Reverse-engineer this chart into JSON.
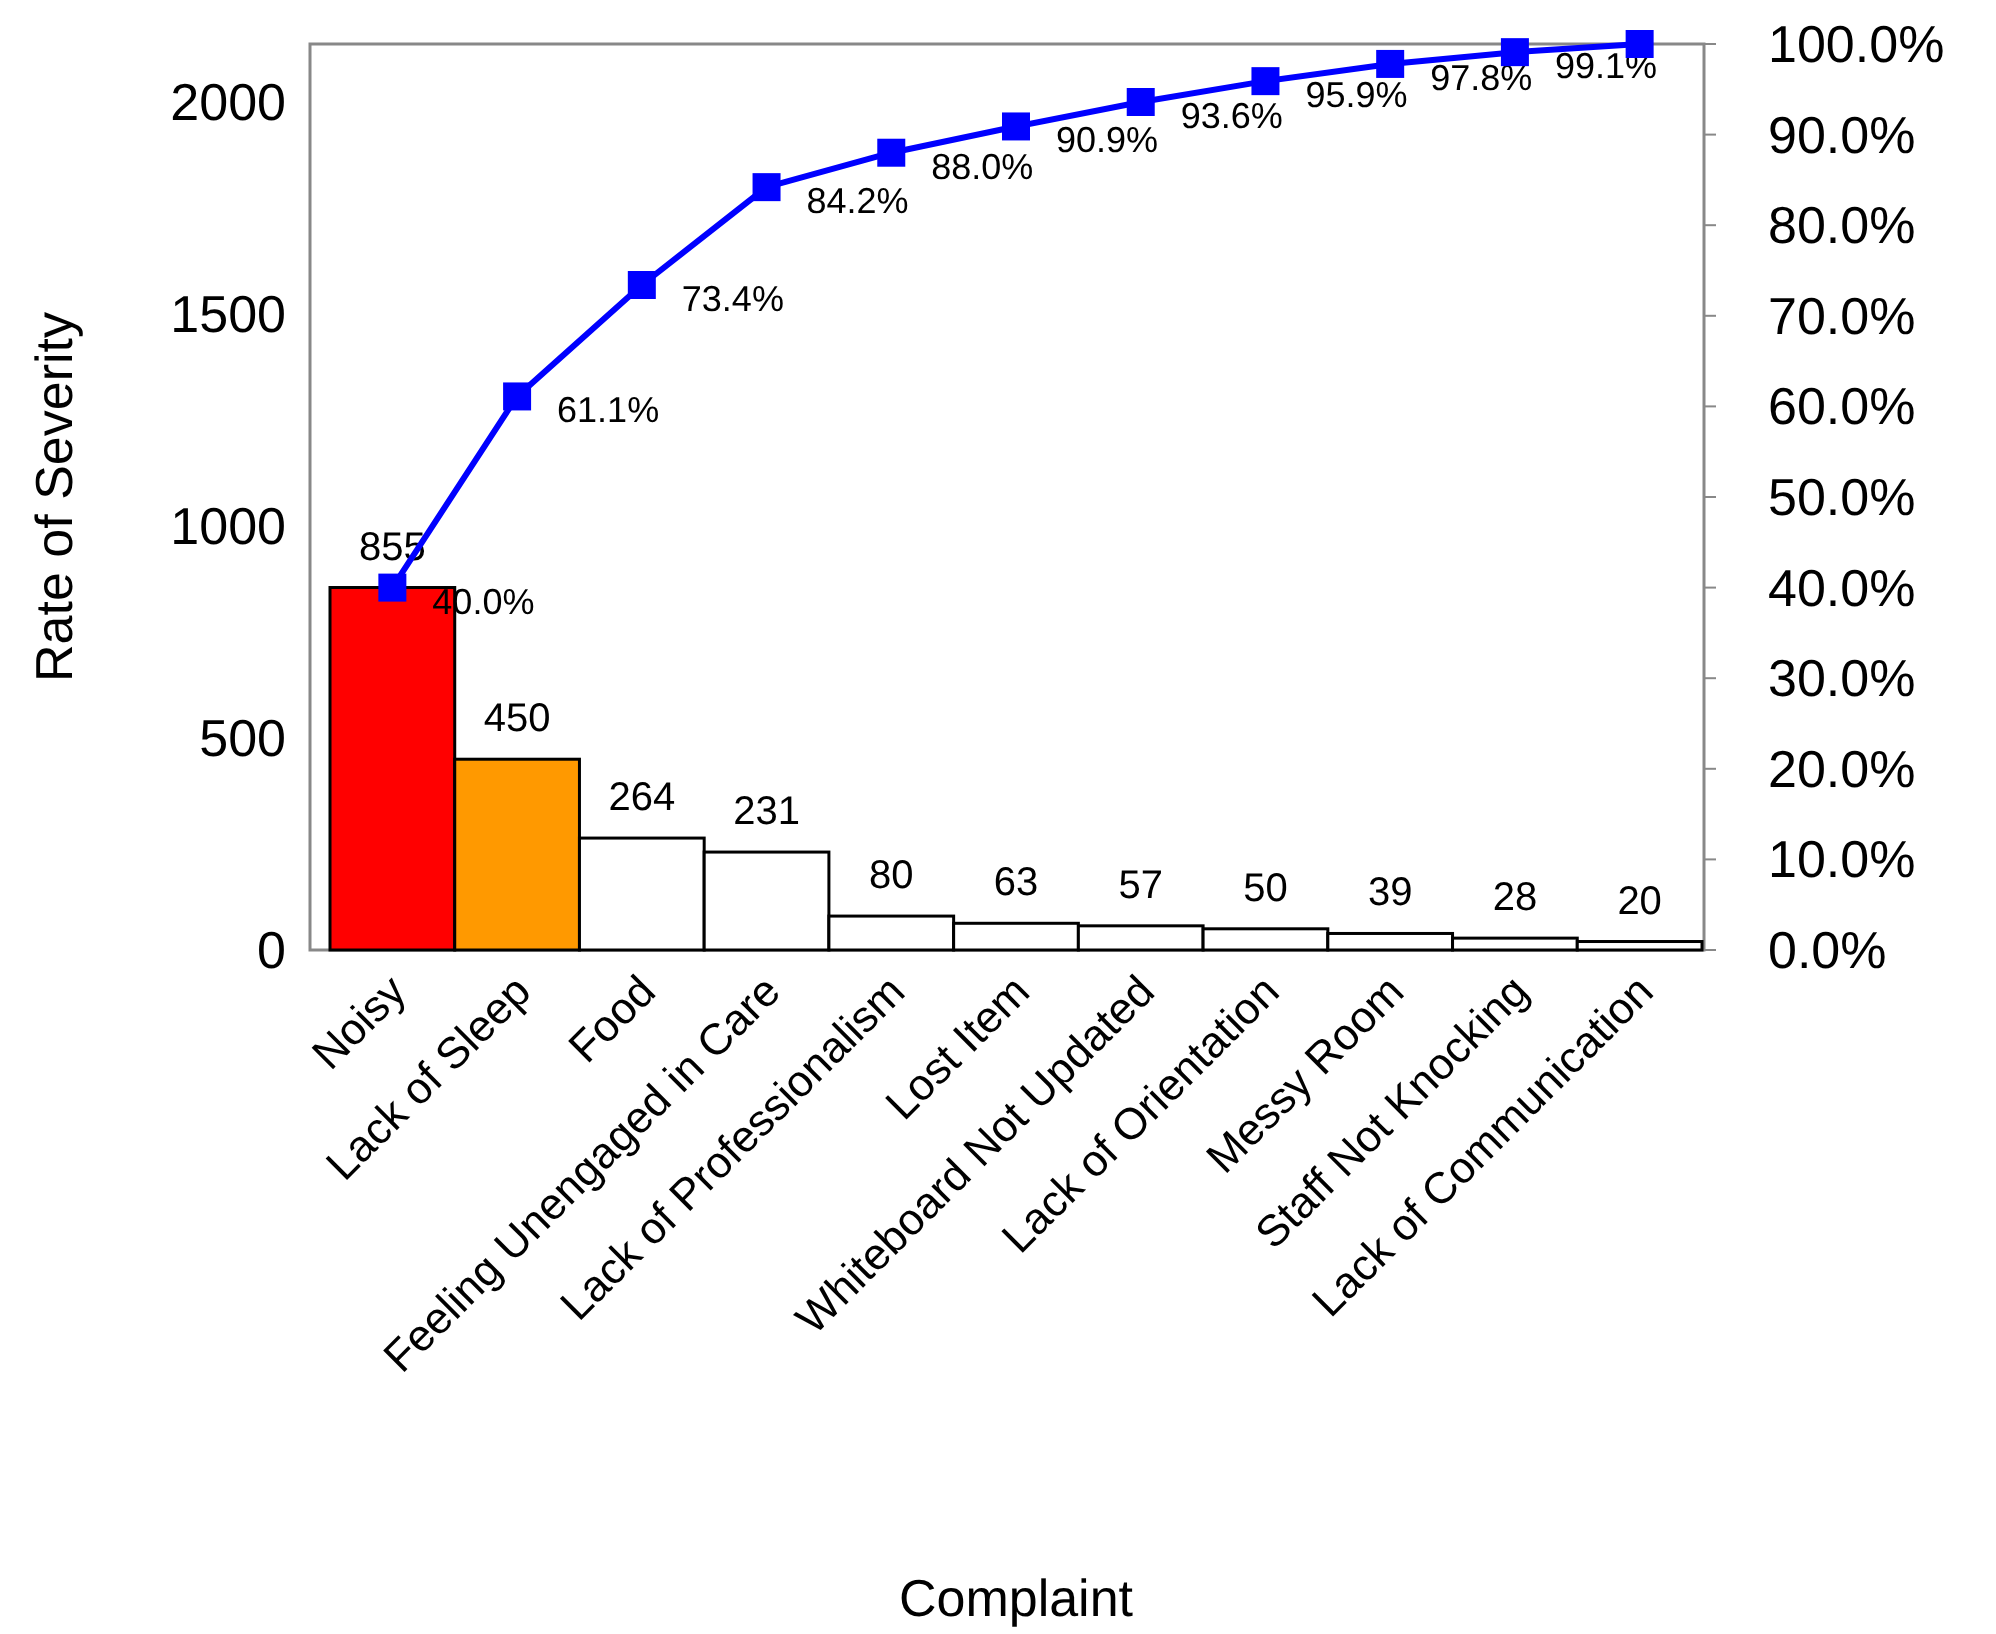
{
  "chart_data": {
    "type": "bar",
    "xlabel": "Complaint",
    "ylabel": "Rate of Severity",
    "categories": [
      "Noisy",
      "Lack of Sleep",
      "Food",
      "Feeling Unengaged in Care",
      "Lack of Professionalism",
      "Lost Item",
      "Whiteboard Not Updated",
      "Lack of Orientation",
      "Messy Room",
      "Staff Not Knocking",
      "Lack of Communication"
    ],
    "series": [
      {
        "values": [
          855,
          450,
          264,
          231,
          80,
          63,
          57,
          50,
          39,
          28,
          20
        ],
        "colors": [
          "#ff0000",
          "#ff9900",
          "#ffffff",
          "#ffffff",
          "#ffffff",
          "#ffffff",
          "#ffffff",
          "#ffffff",
          "#ffffff",
          "#ffffff",
          "#ffffff"
        ]
      },
      {
        "type": "line",
        "axis": "y2",
        "color": "#0000ff",
        "marker": "square",
        "values": [
          40.0,
          61.1,
          73.4,
          84.2,
          88.0,
          90.9,
          93.6,
          95.9,
          97.8,
          99.1,
          100.0
        ],
        "value_labels": [
          "40.0%",
          "61.1%",
          "73.4%",
          "84.2%",
          "88.0%",
          "90.9%",
          "93.6%",
          "95.9%",
          "97.8%",
          "99.1%",
          null
        ]
      }
    ],
    "data_labels": true,
    "ylim": [
      0,
      2137
    ],
    "yticks": [
      0,
      500,
      1000,
      1500,
      2000
    ],
    "y2lim": [
      0,
      100
    ],
    "y2ticks": [
      {
        "value": 0,
        "label": "0.0%"
      },
      {
        "value": 10,
        "label": "10.0%"
      },
      {
        "value": 20,
        "label": "20.0%"
      },
      {
        "value": 30,
        "label": "30.0%"
      },
      {
        "value": 40,
        "label": "40.0%"
      },
      {
        "value": 50,
        "label": "50.0%"
      },
      {
        "value": 60,
        "label": "60.0%"
      },
      {
        "value": 70,
        "label": "70.0%"
      },
      {
        "value": 80,
        "label": "80.0%"
      },
      {
        "value": 90,
        "label": "90.0%"
      },
      {
        "value": 100,
        "label": "100.0%"
      }
    ],
    "grid": false
  }
}
